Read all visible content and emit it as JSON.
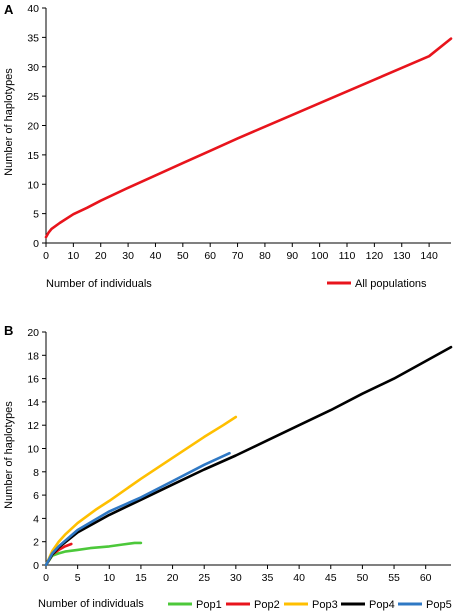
{
  "chart_data": [
    {
      "type": "line",
      "panel_label": "A",
      "title": "",
      "xlabel": "Number of individuals",
      "ylabel": "Number of haplotypes",
      "xlim": [
        0,
        148
      ],
      "ylim": [
        0,
        40
      ],
      "x_ticks": [
        0,
        10,
        20,
        30,
        40,
        50,
        60,
        70,
        80,
        90,
        100,
        110,
        120,
        130,
        140
      ],
      "y_ticks": [
        0,
        5,
        10,
        15,
        20,
        25,
        30,
        35,
        40
      ],
      "grid": false,
      "legend_position": "bottom-right",
      "series": [
        {
          "name": "All populations",
          "color": "#e8141c",
          "x": [
            0,
            1,
            2,
            5,
            10,
            15,
            20,
            30,
            40,
            50,
            60,
            70,
            80,
            90,
            100,
            110,
            120,
            130,
            140,
            148
          ],
          "y": [
            1,
            1.8,
            2.4,
            3.4,
            4.9,
            6.0,
            7.2,
            9.4,
            11.5,
            13.6,
            15.7,
            17.8,
            19.8,
            21.8,
            23.8,
            25.8,
            27.8,
            29.8,
            31.8,
            34.8
          ]
        }
      ]
    },
    {
      "type": "line",
      "panel_label": "B",
      "title": "",
      "xlabel": "Number of individuals",
      "ylabel": "Number of haplotypes",
      "xlim": [
        0,
        64
      ],
      "ylim": [
        0,
        20
      ],
      "x_ticks": [
        0,
        5,
        10,
        15,
        20,
        25,
        30,
        35,
        40,
        45,
        50,
        55,
        60
      ],
      "y_ticks": [
        0,
        2,
        4,
        6,
        8,
        10,
        12,
        14,
        16,
        18,
        20
      ],
      "grid": false,
      "legend_position": "bottom",
      "series": [
        {
          "name": "Pop1",
          "color": "#4cc83a",
          "x": [
            0,
            1,
            2,
            3,
            5,
            7,
            10,
            12,
            14,
            15
          ],
          "y": [
            0,
            0.8,
            1.0,
            1.15,
            1.3,
            1.45,
            1.6,
            1.75,
            1.9,
            1.9
          ]
        },
        {
          "name": "Pop2",
          "color": "#e8141c",
          "x": [
            0,
            1,
            2,
            3,
            4
          ],
          "y": [
            0,
            0.9,
            1.3,
            1.6,
            1.8
          ]
        },
        {
          "name": "Pop3",
          "color": "#ffbf00",
          "x": [
            0,
            1,
            2,
            3,
            5,
            8,
            10,
            15,
            20,
            25,
            28,
            30
          ],
          "y": [
            0,
            1.2,
            2.0,
            2.6,
            3.6,
            4.8,
            5.5,
            7.4,
            9.2,
            11.0,
            12.0,
            12.7
          ]
        },
        {
          "name": "Pop4",
          "color": "#000000",
          "x": [
            0,
            1,
            2,
            5,
            10,
            15,
            20,
            25,
            30,
            35,
            40,
            45,
            50,
            55,
            60,
            64
          ],
          "y": [
            0,
            0.9,
            1.5,
            2.8,
            4.3,
            5.6,
            6.9,
            8.2,
            9.4,
            10.7,
            12.0,
            13.3,
            14.7,
            16.0,
            17.5,
            18.7
          ]
        },
        {
          "name": "Pop5",
          "color": "#2f78c4",
          "x": [
            0,
            1,
            2,
            5,
            10,
            15,
            20,
            25,
            29
          ],
          "y": [
            0,
            1.0,
            1.6,
            3.0,
            4.6,
            5.8,
            7.2,
            8.6,
            9.6
          ]
        }
      ]
    }
  ]
}
